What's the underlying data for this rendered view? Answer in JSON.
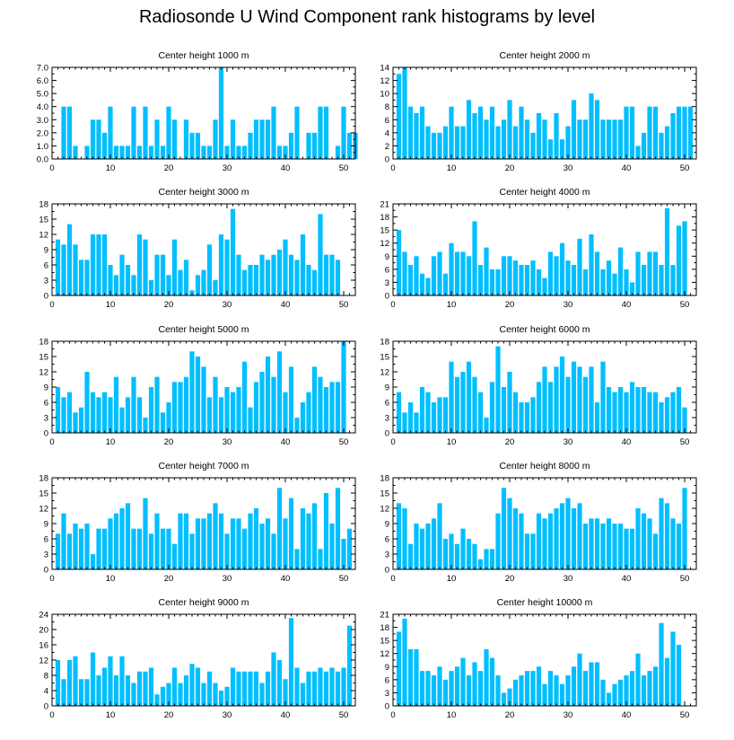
{
  "title": "Radiosonde U Wind Component rank histograms by level",
  "colors": {
    "bar": "#00bfff",
    "axis": "#000000"
  },
  "chart_data": [
    {
      "type": "bar",
      "title": "Center height 1000 m",
      "xlim": [
        0,
        52
      ],
      "ylim": [
        0,
        7
      ],
      "xticks": [
        0,
        10,
        20,
        30,
        40,
        50
      ],
      "yticks": [
        0,
        1,
        2,
        3,
        4,
        5,
        6,
        7
      ],
      "yticklabels": [
        "0.0",
        "1.0",
        "2.0",
        "3.0",
        "4.0",
        "5.0",
        "6.0",
        "7.0"
      ],
      "values": [
        0,
        4,
        4,
        1,
        0,
        1,
        3,
        3,
        2,
        4,
        1,
        1,
        1,
        4,
        1,
        4,
        1,
        3,
        1,
        4,
        3,
        0,
        3,
        2,
        2,
        1,
        1,
        3,
        7,
        1,
        3,
        1,
        1,
        2,
        3,
        3,
        3,
        4,
        1,
        1,
        2,
        4,
        0,
        2,
        2,
        4,
        4,
        0,
        1,
        4,
        2,
        2
      ]
    },
    {
      "type": "bar",
      "title": "Center height 2000 m",
      "xlim": [
        0,
        52
      ],
      "ylim": [
        0,
        14
      ],
      "xticks": [
        0,
        10,
        20,
        30,
        40,
        50
      ],
      "yticks": [
        0,
        2,
        4,
        6,
        8,
        10,
        12,
        14
      ],
      "yticklabels": [
        "0",
        "2",
        "4",
        "6",
        "8",
        "10",
        "12",
        "14"
      ],
      "values": [
        13,
        14,
        8,
        7,
        8,
        5,
        4,
        4,
        5,
        8,
        5,
        5,
        9,
        7,
        8,
        6,
        8,
        5,
        6,
        9,
        5,
        8,
        6,
        4,
        7,
        6,
        3,
        7,
        3,
        5,
        9,
        6,
        6,
        10,
        9,
        6,
        6,
        6,
        6,
        8,
        8,
        2,
        4,
        8,
        8,
        4,
        5,
        7,
        8,
        8,
        8,
        0
      ]
    },
    {
      "type": "bar",
      "title": "Center height 3000 m",
      "xlim": [
        0,
        52
      ],
      "ylim": [
        0,
        18
      ],
      "xticks": [
        0,
        10,
        20,
        30,
        40,
        50
      ],
      "yticks": [
        0,
        3,
        6,
        9,
        12,
        15,
        18
      ],
      "yticklabels": [
        "0",
        "3",
        "6",
        "9",
        "12",
        "15",
        "18"
      ],
      "values": [
        11,
        10,
        14,
        10,
        7,
        7,
        12,
        12,
        12,
        6,
        4,
        8,
        6,
        4,
        12,
        11,
        3,
        8,
        8,
        4,
        11,
        5,
        7,
        1,
        4,
        5,
        10,
        3,
        12,
        11,
        17,
        8,
        5,
        6,
        6,
        8,
        7,
        8,
        9,
        11,
        8,
        7,
        12,
        6,
        5,
        16,
        8,
        8,
        7,
        0,
        0,
        0
      ]
    },
    {
      "type": "bar",
      "title": "Center height 4000 m",
      "xlim": [
        0,
        52
      ],
      "ylim": [
        0,
        21
      ],
      "xticks": [
        0,
        10,
        20,
        30,
        40,
        50
      ],
      "yticks": [
        0,
        3,
        6,
        9,
        12,
        15,
        18,
        21
      ],
      "yticklabels": [
        "0",
        "3",
        "6",
        "9",
        "12",
        "15",
        "18",
        "21"
      ],
      "values": [
        15,
        10,
        7,
        9,
        5,
        4,
        9,
        10,
        5,
        12,
        10,
        10,
        9,
        17,
        7,
        11,
        6,
        6,
        9,
        9,
        8,
        7,
        7,
        8,
        6,
        4,
        10,
        9,
        12,
        8,
        7,
        13,
        6,
        14,
        10,
        6,
        8,
        5,
        11,
        6,
        3,
        10,
        7,
        10,
        10,
        7,
        20,
        7,
        16,
        17,
        0,
        0
      ]
    },
    {
      "type": "bar",
      "title": "Center height 5000 m",
      "xlim": [
        0,
        52
      ],
      "ylim": [
        0,
        18
      ],
      "xticks": [
        0,
        10,
        20,
        30,
        40,
        50
      ],
      "yticks": [
        0,
        3,
        6,
        9,
        12,
        15,
        18
      ],
      "yticklabels": [
        "0",
        "3",
        "6",
        "9",
        "12",
        "15",
        "18"
      ],
      "values": [
        9,
        7,
        8,
        4,
        5,
        12,
        8,
        7,
        8,
        7,
        11,
        5,
        7,
        11,
        7,
        3,
        9,
        11,
        4,
        6,
        10,
        10,
        11,
        16,
        15,
        13,
        7,
        11,
        7,
        9,
        8,
        9,
        14,
        5,
        10,
        12,
        15,
        11,
        16,
        8,
        13,
        3,
        6,
        8,
        13,
        11,
        9,
        10,
        10,
        18,
        0,
        0
      ]
    },
    {
      "type": "bar",
      "title": "Center height 6000 m",
      "xlim": [
        0,
        52
      ],
      "ylim": [
        0,
        18
      ],
      "xticks": [
        0,
        10,
        20,
        30,
        40,
        50
      ],
      "yticks": [
        0,
        3,
        6,
        9,
        12,
        15,
        18
      ],
      "yticklabels": [
        "0",
        "3",
        "6",
        "9",
        "12",
        "15",
        "18"
      ],
      "values": [
        8,
        4,
        6,
        4,
        9,
        8,
        6,
        7,
        7,
        14,
        11,
        12,
        14,
        11,
        8,
        3,
        10,
        17,
        9,
        12,
        8,
        6,
        6,
        7,
        10,
        13,
        10,
        13,
        15,
        11,
        14,
        13,
        11,
        13,
        6,
        14,
        9,
        8,
        9,
        8,
        10,
        9,
        9,
        8,
        8,
        6,
        7,
        8,
        9,
        5,
        0,
        0
      ]
    },
    {
      "type": "bar",
      "title": "Center height 7000 m",
      "xlim": [
        0,
        52
      ],
      "ylim": [
        0,
        18
      ],
      "xticks": [
        0,
        10,
        20,
        30,
        40,
        50
      ],
      "yticks": [
        0,
        3,
        6,
        9,
        12,
        15,
        18
      ],
      "yticklabels": [
        "0",
        "3",
        "6",
        "9",
        "12",
        "15",
        "18"
      ],
      "values": [
        7,
        11,
        7,
        9,
        8,
        9,
        3,
        8,
        8,
        10,
        11,
        12,
        13,
        8,
        8,
        14,
        7,
        11,
        8,
        8,
        5,
        11,
        11,
        7,
        10,
        10,
        11,
        13,
        11,
        7,
        10,
        10,
        8,
        11,
        12,
        9,
        10,
        7,
        16,
        10,
        14,
        4,
        12,
        11,
        13,
        4,
        15,
        9,
        16,
        6,
        8,
        0
      ]
    },
    {
      "type": "bar",
      "title": "Center height 8000 m",
      "xlim": [
        0,
        52
      ],
      "ylim": [
        0,
        18
      ],
      "xticks": [
        0,
        10,
        20,
        30,
        40,
        50
      ],
      "yticks": [
        0,
        3,
        6,
        9,
        12,
        15,
        18
      ],
      "yticklabels": [
        "0",
        "3",
        "6",
        "9",
        "12",
        "15",
        "18"
      ],
      "values": [
        13,
        12,
        5,
        9,
        8,
        9,
        10,
        13,
        6,
        7,
        5,
        8,
        6,
        5,
        2,
        4,
        4,
        11,
        16,
        14,
        12,
        11,
        7,
        7,
        11,
        10,
        11,
        12,
        13,
        14,
        12,
        13,
        9,
        10,
        10,
        9,
        10,
        9,
        9,
        8,
        8,
        12,
        11,
        10,
        7,
        14,
        13,
        10,
        9,
        16,
        0,
        0
      ]
    },
    {
      "type": "bar",
      "title": "Center height 9000 m",
      "xlim": [
        0,
        52
      ],
      "ylim": [
        0,
        24
      ],
      "xticks": [
        0,
        10,
        20,
        30,
        40,
        50
      ],
      "yticks": [
        0,
        4,
        8,
        12,
        16,
        20,
        24
      ],
      "yticklabels": [
        "0",
        "4",
        "8",
        "12",
        "16",
        "20",
        "24"
      ],
      "values": [
        12,
        7,
        12,
        13,
        7,
        7,
        14,
        8,
        10,
        13,
        8,
        13,
        8,
        6,
        9,
        9,
        10,
        3,
        5,
        6,
        10,
        6,
        8,
        11,
        10,
        6,
        9,
        6,
        4,
        5,
        10,
        9,
        9,
        9,
        9,
        6,
        9,
        14,
        12,
        7,
        23,
        10,
        6,
        9,
        9,
        10,
        9,
        10,
        9,
        10,
        21,
        0
      ]
    },
    {
      "type": "bar",
      "title": "Center height 10000 m",
      "xlim": [
        0,
        52
      ],
      "ylim": [
        0,
        21
      ],
      "xticks": [
        0,
        10,
        20,
        30,
        40,
        50
      ],
      "yticks": [
        0,
        3,
        6,
        9,
        12,
        15,
        18,
        21
      ],
      "yticklabels": [
        "0",
        "3",
        "6",
        "9",
        "12",
        "15",
        "18",
        "21"
      ],
      "values": [
        17,
        20,
        13,
        13,
        8,
        8,
        7,
        9,
        6,
        8,
        9,
        11,
        7,
        10,
        8,
        13,
        11,
        7,
        3,
        4,
        6,
        7,
        8,
        8,
        9,
        5,
        8,
        7,
        5,
        7,
        9,
        12,
        8,
        10,
        10,
        6,
        3,
        5,
        6,
        7,
        8,
        12,
        7,
        8,
        9,
        19,
        11,
        17,
        14,
        0,
        0,
        0
      ]
    }
  ]
}
